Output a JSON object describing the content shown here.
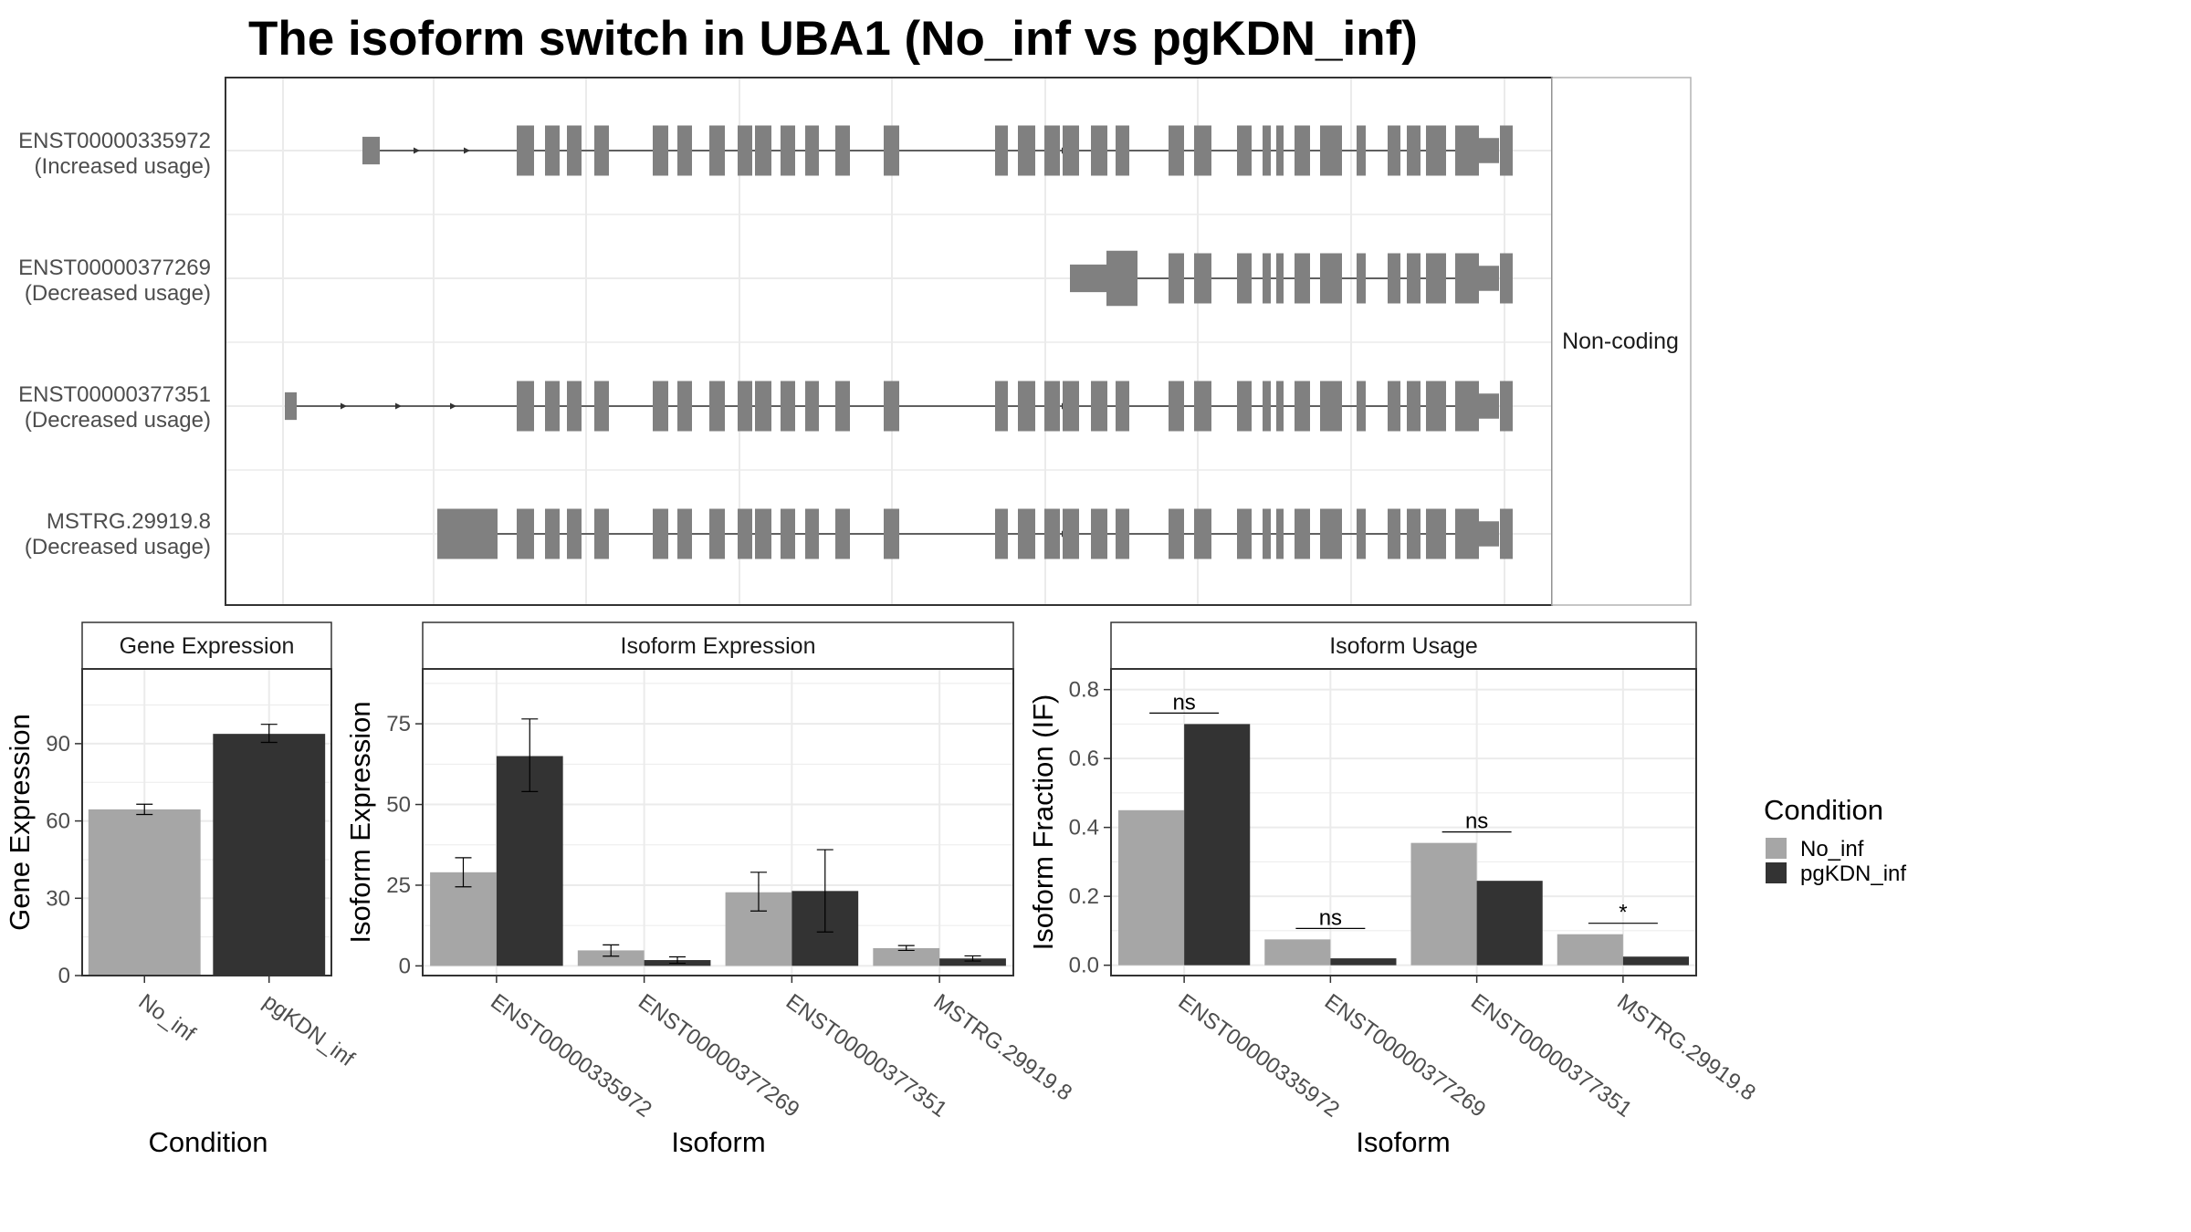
{
  "title": "The isoform switch in UBA1 (No_inf vs pgKDN_inf)",
  "colors": {
    "no_inf": "#a6a6a6",
    "pgkdn_inf": "#333333",
    "exon": "#808080",
    "grid": "#ebebeb",
    "panel_border": "#333333"
  },
  "transcript_panel": {
    "facet_label": "Non-coding",
    "transcripts": [
      {
        "id": "ENST00000335972",
        "usage": "(Increased usage)"
      },
      {
        "id": "ENST00000377269",
        "usage": "(Decreased usage)"
      },
      {
        "id": "ENST00000377351",
        "usage": "(Decreased usage)"
      },
      {
        "id": "MSTRG.29919.8",
        "usage": "(Decreased usage)"
      }
    ]
  },
  "legend": {
    "title": "Condition",
    "items": [
      {
        "label": "No_inf",
        "color": "#a6a6a6"
      },
      {
        "label": "pgKDN_inf",
        "color": "#333333"
      }
    ]
  },
  "chart_data": [
    {
      "type": "bar",
      "strip": "Gene Expression",
      "xlabel": "Condition",
      "ylabel": "Gene Expression",
      "categories": [
        "No_inf",
        "pgKDN_inf"
      ],
      "values": [
        64.5,
        93.8
      ],
      "error": [
        [
          62.5,
          66.5
        ],
        [
          90.5,
          97.5
        ]
      ],
      "ylim": [
        0,
        119
      ],
      "yticks": [
        0,
        30,
        60,
        90
      ]
    },
    {
      "type": "bar",
      "strip": "Isoform Expression",
      "xlabel": "Isoform",
      "ylabel": "Isoform Expression",
      "categories": [
        "ENST00000335972",
        "ENST00000377269",
        "ENST00000377351",
        "MSTRG.29919.8"
      ],
      "series": [
        {
          "name": "No_inf",
          "values": [
            29.0,
            4.8,
            22.8,
            5.5
          ],
          "error": [
            [
              24.5,
              33.5
            ],
            [
              3.0,
              6.5
            ],
            [
              17.0,
              29.0
            ],
            [
              4.8,
              6.3
            ]
          ]
        },
        {
          "name": "pgKDN_inf",
          "values": [
            65.0,
            1.8,
            23.2,
            2.3
          ],
          "error": [
            [
              54.0,
              76.5
            ],
            [
              0.8,
              2.8
            ],
            [
              10.5,
              36.0
            ],
            [
              1.5,
              3.1
            ]
          ]
        }
      ],
      "ylim": [
        -3,
        92
      ],
      "yticks": [
        0,
        25,
        50,
        75
      ]
    },
    {
      "type": "bar",
      "strip": "Isoform Usage",
      "xlabel": "Isoform",
      "ylabel": "Isoform Fraction (IF)",
      "categories": [
        "ENST00000335972",
        "ENST00000377269",
        "ENST00000377351",
        "MSTRG.29919.8"
      ],
      "series": [
        {
          "name": "No_inf",
          "values": [
            0.45,
            0.075,
            0.355,
            0.09
          ]
        },
        {
          "name": "pgKDN_inf",
          "values": [
            0.7,
            0.02,
            0.245,
            0.025
          ]
        }
      ],
      "significance": [
        "ns",
        "ns",
        "ns",
        "*"
      ],
      "ylim": [
        -0.03,
        0.86
      ],
      "yticks": [
        0.0,
        0.2,
        0.4,
        0.6,
        0.8
      ],
      "ytick_labels": [
        "0.0",
        "0.2",
        "0.4",
        "0.6",
        "0.8"
      ]
    }
  ]
}
